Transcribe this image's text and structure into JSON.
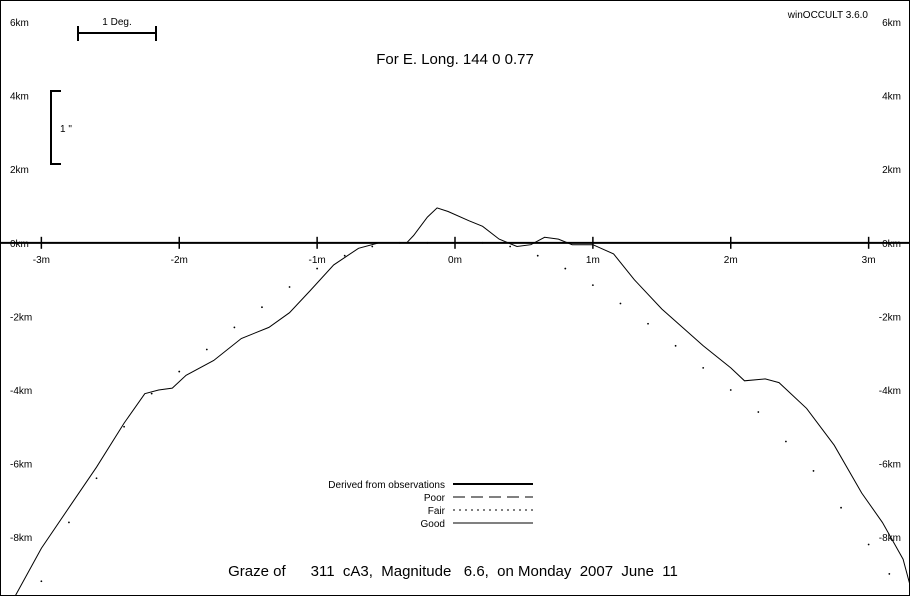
{
  "chart_data": {
    "type": "line",
    "software": "winOCCULT 3.6.0",
    "title": "For E. Long.  144  0  0.77",
    "caption": "Graze of      311  cA3,  Magnitude   6.6,  on Monday  2007  June  11",
    "x_tick_labels": [
      "-3m",
      "-2m",
      "-1m",
      "0m",
      "1m",
      "2m",
      "3m"
    ],
    "x_ticks": [
      -3,
      -2,
      -1,
      0,
      1,
      2,
      3
    ],
    "y_tick_labels": [
      "6km",
      "4km",
      "2km",
      "0km",
      "-2km",
      "-4km",
      "-6km",
      "-8km"
    ],
    "y_ticks": [
      6,
      4,
      2,
      0,
      -2,
      -4,
      -6,
      -8
    ],
    "xlim": [
      -3.3,
      3.3
    ],
    "ylim": [
      -9.6,
      6.6
    ],
    "scale_bars": {
      "degree_label": "1 Deg.",
      "arcsec_label": "1 \""
    },
    "legend": [
      {
        "label": "Derived from observations",
        "style": "thick"
      },
      {
        "label": "Poor",
        "style": "dashed"
      },
      {
        "label": "Fair",
        "style": "dotted"
      },
      {
        "label": "Good",
        "style": "solid"
      }
    ],
    "series": [
      {
        "style": "solid",
        "points": [
          [
            -3.19,
            -9.6
          ],
          [
            -3.0,
            -8.3
          ],
          [
            -2.8,
            -7.2
          ],
          [
            -2.6,
            -6.1
          ],
          [
            -2.4,
            -4.9
          ],
          [
            -2.25,
            -4.1
          ],
          [
            -2.15,
            -4.0
          ],
          [
            -2.05,
            -3.95
          ],
          [
            -1.95,
            -3.6
          ],
          [
            -1.75,
            -3.2
          ],
          [
            -1.55,
            -2.6
          ],
          [
            -1.35,
            -2.3
          ],
          [
            -1.2,
            -1.9
          ],
          [
            -1.05,
            -1.3
          ],
          [
            -0.88,
            -0.6
          ],
          [
            -0.7,
            -0.15
          ],
          [
            -0.55,
            0.0
          ],
          [
            -0.35,
            0.0
          ],
          [
            -0.3,
            0.2
          ],
          [
            -0.2,
            0.7
          ],
          [
            -0.13,
            0.95
          ],
          [
            -0.05,
            0.85
          ],
          [
            0.1,
            0.6
          ],
          [
            0.2,
            0.45
          ],
          [
            0.32,
            0.1
          ],
          [
            0.45,
            -0.1
          ],
          [
            0.55,
            -0.05
          ],
          [
            0.65,
            0.15
          ],
          [
            0.75,
            0.1
          ],
          [
            0.85,
            -0.05
          ],
          [
            1.0,
            -0.05
          ],
          [
            1.15,
            -0.3
          ],
          [
            1.3,
            -1.0
          ],
          [
            1.5,
            -1.8
          ],
          [
            1.65,
            -2.3
          ],
          [
            1.8,
            -2.8
          ],
          [
            2.0,
            -3.4
          ],
          [
            2.1,
            -3.75
          ],
          [
            2.25,
            -3.7
          ],
          [
            2.35,
            -3.8
          ],
          [
            2.55,
            -4.5
          ],
          [
            2.75,
            -5.5
          ],
          [
            2.95,
            -6.8
          ],
          [
            3.1,
            -7.6
          ],
          [
            3.25,
            -8.6
          ],
          [
            3.3,
            -9.3
          ]
        ]
      },
      {
        "style": "dotted",
        "points": [
          [
            -3.0,
            -9.2
          ],
          [
            -2.8,
            -7.6
          ],
          [
            -2.6,
            -6.4
          ],
          [
            -2.4,
            -5.0
          ],
          [
            -2.2,
            -4.1
          ],
          [
            -2.0,
            -3.5
          ],
          [
            -1.8,
            -2.9
          ],
          [
            -1.6,
            -2.3
          ],
          [
            -1.4,
            -1.75
          ],
          [
            -1.2,
            -1.2
          ],
          [
            -1.0,
            -0.7
          ],
          [
            -0.8,
            -0.35
          ],
          [
            -0.6,
            -0.1
          ],
          [
            -0.4,
            0.0
          ],
          [
            -0.2,
            0.0
          ],
          [
            0.0,
            0.0
          ],
          [
            0.2,
            0.0
          ],
          [
            0.4,
            -0.1
          ],
          [
            0.6,
            -0.35
          ],
          [
            0.8,
            -0.7
          ],
          [
            1.0,
            -1.15
          ],
          [
            1.2,
            -1.65
          ],
          [
            1.4,
            -2.2
          ],
          [
            1.6,
            -2.8
          ],
          [
            1.8,
            -3.4
          ],
          [
            2.0,
            -4.0
          ],
          [
            2.2,
            -4.6
          ],
          [
            2.4,
            -5.4
          ],
          [
            2.6,
            -6.2
          ],
          [
            2.8,
            -7.2
          ],
          [
            3.0,
            -8.2
          ],
          [
            3.15,
            -9.0
          ]
        ]
      }
    ]
  }
}
